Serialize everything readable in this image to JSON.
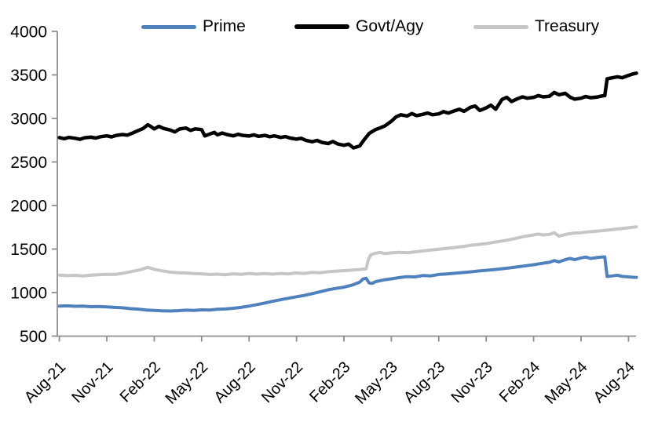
{
  "chart_data": {
    "type": "line",
    "title": "",
    "xlabel": "",
    "ylabel": "",
    "x_unit": "months since Aug-2021",
    "ylim": [
      500,
      4000
    ],
    "y_tick_step": 500,
    "grid": "off",
    "legend_position": "top",
    "axis_color": "#8e8e8e",
    "y_tick_labels": [
      "4000",
      "3500",
      "3000",
      "2500",
      "2000",
      "1500",
      "1000",
      "500"
    ],
    "x_tick_labels": [
      "Aug-21",
      "Nov-21",
      "Feb-22",
      "May-22",
      "Aug-22",
      "Nov-22",
      "Feb-23",
      "May-23",
      "Aug-23",
      "Nov-23",
      "Feb-24",
      "May-24",
      "Aug-24"
    ],
    "series": [
      {
        "name": "Prime",
        "color": "#4f81bd",
        "points": [
          [
            0,
            845
          ],
          [
            0.5,
            848
          ],
          [
            1,
            842
          ],
          [
            1.5,
            845
          ],
          [
            2,
            838
          ],
          [
            2.5,
            840
          ],
          [
            3,
            835
          ],
          [
            3.5,
            830
          ],
          [
            4,
            825
          ],
          [
            4.5,
            815
          ],
          [
            5,
            810
          ],
          [
            5.5,
            800
          ],
          [
            6,
            795
          ],
          [
            6.5,
            790
          ],
          [
            7,
            788
          ],
          [
            7.5,
            792
          ],
          [
            8,
            798
          ],
          [
            8.5,
            795
          ],
          [
            9,
            802
          ],
          [
            9.5,
            800
          ],
          [
            10,
            808
          ],
          [
            10.5,
            812
          ],
          [
            11,
            820
          ],
          [
            11.5,
            830
          ],
          [
            12,
            845
          ],
          [
            12.5,
            862
          ],
          [
            13,
            880
          ],
          [
            13.5,
            900
          ],
          [
            14,
            918
          ],
          [
            14.5,
            935
          ],
          [
            15,
            952
          ],
          [
            15.5,
            968
          ],
          [
            16,
            988
          ],
          [
            16.5,
            1010
          ],
          [
            17,
            1032
          ],
          [
            17.5,
            1048
          ],
          [
            18,
            1062
          ],
          [
            18.5,
            1085
          ],
          [
            19,
            1120
          ],
          [
            19.2,
            1155
          ],
          [
            19.4,
            1165
          ],
          [
            19.6,
            1110
          ],
          [
            19.8,
            1105
          ],
          [
            20,
            1125
          ],
          [
            20.5,
            1145
          ],
          [
            21,
            1158
          ],
          [
            21.5,
            1172
          ],
          [
            22,
            1183
          ],
          [
            22.5,
            1180
          ],
          [
            23,
            1196
          ],
          [
            23.5,
            1192
          ],
          [
            24,
            1208
          ],
          [
            24.5,
            1214
          ],
          [
            25,
            1222
          ],
          [
            25.5,
            1230
          ],
          [
            26,
            1238
          ],
          [
            26.5,
            1248
          ],
          [
            27,
            1256
          ],
          [
            27.5,
            1264
          ],
          [
            28,
            1274
          ],
          [
            28.5,
            1284
          ],
          [
            29,
            1296
          ],
          [
            29.5,
            1308
          ],
          [
            30,
            1320
          ],
          [
            30.5,
            1334
          ],
          [
            31,
            1348
          ],
          [
            31.3,
            1368
          ],
          [
            31.6,
            1352
          ],
          [
            32,
            1378
          ],
          [
            32.3,
            1392
          ],
          [
            32.6,
            1378
          ],
          [
            33,
            1398
          ],
          [
            33.3,
            1408
          ],
          [
            33.6,
            1392
          ],
          [
            34,
            1402
          ],
          [
            34.3,
            1408
          ],
          [
            34.5,
            1410
          ],
          [
            34.65,
            1185
          ],
          [
            35,
            1192
          ],
          [
            35.3,
            1200
          ],
          [
            35.6,
            1186
          ],
          [
            36,
            1180
          ],
          [
            36.3,
            1176
          ],
          [
            36.5,
            1175
          ]
        ]
      },
      {
        "name": "Govt/Agy",
        "color": "#000000",
        "points": [
          [
            0,
            2780
          ],
          [
            0.3,
            2768
          ],
          [
            0.6,
            2782
          ],
          [
            1,
            2772
          ],
          [
            1.3,
            2760
          ],
          [
            1.6,
            2778
          ],
          [
            2,
            2785
          ],
          [
            2.3,
            2775
          ],
          [
            2.6,
            2790
          ],
          [
            3,
            2800
          ],
          [
            3.3,
            2788
          ],
          [
            3.6,
            2805
          ],
          [
            4,
            2815
          ],
          [
            4.3,
            2808
          ],
          [
            4.6,
            2830
          ],
          [
            5,
            2862
          ],
          [
            5.3,
            2885
          ],
          [
            5.6,
            2928
          ],
          [
            5.8,
            2905
          ],
          [
            6,
            2880
          ],
          [
            6.3,
            2910
          ],
          [
            6.6,
            2885
          ],
          [
            7,
            2868
          ],
          [
            7.3,
            2845
          ],
          [
            7.6,
            2878
          ],
          [
            8,
            2890
          ],
          [
            8.3,
            2862
          ],
          [
            8.6,
            2880
          ],
          [
            9,
            2872
          ],
          [
            9.2,
            2800
          ],
          [
            9.5,
            2820
          ],
          [
            9.8,
            2840
          ],
          [
            10,
            2812
          ],
          [
            10.3,
            2832
          ],
          [
            10.6,
            2815
          ],
          [
            11,
            2800
          ],
          [
            11.3,
            2818
          ],
          [
            11.6,
            2805
          ],
          [
            12,
            2798
          ],
          [
            12.3,
            2812
          ],
          [
            12.6,
            2795
          ],
          [
            13,
            2805
          ],
          [
            13.3,
            2790
          ],
          [
            13.6,
            2800
          ],
          [
            14,
            2782
          ],
          [
            14.3,
            2792
          ],
          [
            14.6,
            2775
          ],
          [
            15,
            2762
          ],
          [
            15.3,
            2772
          ],
          [
            15.6,
            2748
          ],
          [
            16,
            2732
          ],
          [
            16.3,
            2748
          ],
          [
            16.6,
            2725
          ],
          [
            17,
            2712
          ],
          [
            17.3,
            2735
          ],
          [
            17.6,
            2708
          ],
          [
            18,
            2692
          ],
          [
            18.3,
            2705
          ],
          [
            18.6,
            2662
          ],
          [
            18.8,
            2672
          ],
          [
            19,
            2685
          ],
          [
            19.3,
            2760
          ],
          [
            19.6,
            2828
          ],
          [
            20,
            2872
          ],
          [
            20.3,
            2892
          ],
          [
            20.6,
            2915
          ],
          [
            21,
            2968
          ],
          [
            21.3,
            3018
          ],
          [
            21.6,
            3042
          ],
          [
            22,
            3028
          ],
          [
            22.3,
            3056
          ],
          [
            22.6,
            3032
          ],
          [
            23,
            3048
          ],
          [
            23.3,
            3062
          ],
          [
            23.6,
            3042
          ],
          [
            24,
            3052
          ],
          [
            24.3,
            3078
          ],
          [
            24.6,
            3062
          ],
          [
            25,
            3088
          ],
          [
            25.3,
            3105
          ],
          [
            25.6,
            3082
          ],
          [
            26,
            3128
          ],
          [
            26.3,
            3142
          ],
          [
            26.6,
            3092
          ],
          [
            27,
            3122
          ],
          [
            27.3,
            3152
          ],
          [
            27.6,
            3105
          ],
          [
            28,
            3218
          ],
          [
            28.3,
            3242
          ],
          [
            28.6,
            3195
          ],
          [
            29,
            3228
          ],
          [
            29.3,
            3248
          ],
          [
            29.6,
            3232
          ],
          [
            30,
            3242
          ],
          [
            30.3,
            3262
          ],
          [
            30.6,
            3248
          ],
          [
            31,
            3255
          ],
          [
            31.3,
            3298
          ],
          [
            31.6,
            3272
          ],
          [
            32,
            3288
          ],
          [
            32.3,
            3245
          ],
          [
            32.6,
            3222
          ],
          [
            33,
            3232
          ],
          [
            33.3,
            3252
          ],
          [
            33.6,
            3238
          ],
          [
            34,
            3245
          ],
          [
            34.3,
            3258
          ],
          [
            34.5,
            3262
          ],
          [
            34.65,
            3455
          ],
          [
            35,
            3468
          ],
          [
            35.3,
            3478
          ],
          [
            35.6,
            3468
          ],
          [
            36,
            3495
          ],
          [
            36.3,
            3512
          ],
          [
            36.5,
            3520
          ]
        ]
      },
      {
        "name": "Treasury",
        "color": "#c6c6c6",
        "points": [
          [
            0,
            1200
          ],
          [
            0.5,
            1195
          ],
          [
            1,
            1198
          ],
          [
            1.5,
            1192
          ],
          [
            2,
            1200
          ],
          [
            2.5,
            1205
          ],
          [
            3,
            1210
          ],
          [
            3.5,
            1208
          ],
          [
            4,
            1222
          ],
          [
            4.5,
            1240
          ],
          [
            5,
            1258
          ],
          [
            5.3,
            1272
          ],
          [
            5.6,
            1290
          ],
          [
            6,
            1268
          ],
          [
            6.5,
            1250
          ],
          [
            7,
            1235
          ],
          [
            7.5,
            1228
          ],
          [
            8,
            1225
          ],
          [
            8.5,
            1218
          ],
          [
            9,
            1215
          ],
          [
            9.5,
            1208
          ],
          [
            10,
            1212
          ],
          [
            10.5,
            1205
          ],
          [
            11,
            1215
          ],
          [
            11.5,
            1210
          ],
          [
            12,
            1220
          ],
          [
            12.5,
            1212
          ],
          [
            13,
            1218
          ],
          [
            13.5,
            1212
          ],
          [
            14,
            1220
          ],
          [
            14.5,
            1215
          ],
          [
            15,
            1225
          ],
          [
            15.5,
            1220
          ],
          [
            16,
            1232
          ],
          [
            16.5,
            1228
          ],
          [
            17,
            1240
          ],
          [
            17.5,
            1245
          ],
          [
            18,
            1252
          ],
          [
            18.5,
            1258
          ],
          [
            19,
            1265
          ],
          [
            19.4,
            1272
          ],
          [
            19.55,
            1380
          ],
          [
            19.7,
            1432
          ],
          [
            20,
            1452
          ],
          [
            20.3,
            1460
          ],
          [
            20.6,
            1448
          ],
          [
            21,
            1456
          ],
          [
            21.5,
            1462
          ],
          [
            22,
            1458
          ],
          [
            22.5,
            1468
          ],
          [
            23,
            1478
          ],
          [
            23.5,
            1488
          ],
          [
            24,
            1498
          ],
          [
            24.5,
            1508
          ],
          [
            25,
            1518
          ],
          [
            25.5,
            1528
          ],
          [
            26,
            1542
          ],
          [
            26.5,
            1552
          ],
          [
            27,
            1562
          ],
          [
            27.5,
            1578
          ],
          [
            28,
            1592
          ],
          [
            28.5,
            1608
          ],
          [
            29,
            1628
          ],
          [
            29.5,
            1648
          ],
          [
            30,
            1662
          ],
          [
            30.3,
            1672
          ],
          [
            30.6,
            1662
          ],
          [
            31,
            1668
          ],
          [
            31.3,
            1688
          ],
          [
            31.6,
            1648
          ],
          [
            32,
            1668
          ],
          [
            32.5,
            1682
          ],
          [
            33,
            1688
          ],
          [
            33.5,
            1698
          ],
          [
            34,
            1705
          ],
          [
            34.5,
            1714
          ],
          [
            35,
            1724
          ],
          [
            35.5,
            1734
          ],
          [
            36,
            1744
          ],
          [
            36.5,
            1755
          ]
        ]
      }
    ]
  }
}
